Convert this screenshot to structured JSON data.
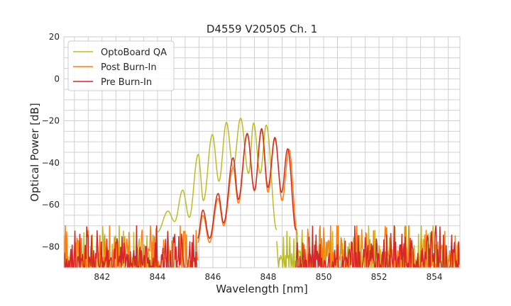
{
  "chart_data": {
    "type": "line",
    "title": "D4559 V20505 Ch. 1",
    "xlabel": "Wavelength [nm]",
    "ylabel": "Optical Power [dB]",
    "xlim": [
      840.62,
      854.92
    ],
    "ylim": [
      -90,
      20
    ],
    "xticks": [
      842,
      844,
      846,
      848,
      850,
      852,
      854
    ],
    "yticks": [
      20,
      0,
      -20,
      -40,
      -60,
      -80
    ],
    "grid": true,
    "legend_position": "top-left",
    "noise_floor": [
      -90,
      -72
    ],
    "series": [
      {
        "name": "OptoBoard QA",
        "color": "#bcbd22",
        "noise_ranges": [
          [
            840.62,
            844.0
          ],
          [
            848.3,
            854.92
          ]
        ],
        "points": [
          [
            844.0,
            -73
          ],
          [
            844.38,
            -63
          ],
          [
            844.62,
            -68
          ],
          [
            844.91,
            -53
          ],
          [
            845.15,
            -66
          ],
          [
            845.47,
            -36
          ],
          [
            845.66,
            -58
          ],
          [
            845.98,
            -26.5
          ],
          [
            846.22,
            -48.8
          ],
          [
            846.49,
            -20.7
          ],
          [
            846.73,
            -42.3
          ],
          [
            847.0,
            -18.7
          ],
          [
            847.29,
            -45.1
          ],
          [
            847.47,
            -21.1
          ],
          [
            847.71,
            -45.1
          ],
          [
            847.93,
            -22
          ],
          [
            848.3,
            -72
          ]
        ]
      },
      {
        "name": "Post Burn-In",
        "color": "#ff7f0e",
        "noise_ranges": [
          [
            840.62,
            845.45
          ],
          [
            849.05,
            854.92
          ]
        ],
        "points": [
          [
            845.45,
            -78
          ],
          [
            845.64,
            -65
          ],
          [
            845.88,
            -78
          ],
          [
            846.19,
            -57
          ],
          [
            846.39,
            -70
          ],
          [
            846.73,
            -42.3
          ],
          [
            846.92,
            -59.2
          ],
          [
            847.24,
            -26.5
          ],
          [
            847.5,
            -53.5
          ],
          [
            847.76,
            -24.5
          ],
          [
            847.99,
            -54
          ],
          [
            848.24,
            -28.5
          ],
          [
            848.5,
            -58
          ],
          [
            848.75,
            -33.5
          ],
          [
            849.05,
            -74
          ]
        ]
      },
      {
        "name": "Pre Burn-In",
        "color": "#d62728",
        "noise_ranges": [
          [
            840.62,
            845.45
          ],
          [
            849.0,
            854.92
          ]
        ],
        "points": [
          [
            845.45,
            -76
          ],
          [
            845.64,
            -62.5
          ],
          [
            845.88,
            -76
          ],
          [
            846.19,
            -54.6
          ],
          [
            846.39,
            -68.7
          ],
          [
            846.73,
            -37.6
          ],
          [
            846.92,
            -57.5
          ],
          [
            847.24,
            -26
          ],
          [
            847.5,
            -53
          ],
          [
            847.76,
            -23.7
          ],
          [
            847.99,
            -51.8
          ],
          [
            848.24,
            -27.9
          ],
          [
            848.48,
            -54.1
          ],
          [
            848.7,
            -33.3
          ],
          [
            849.0,
            -72
          ]
        ]
      }
    ]
  }
}
